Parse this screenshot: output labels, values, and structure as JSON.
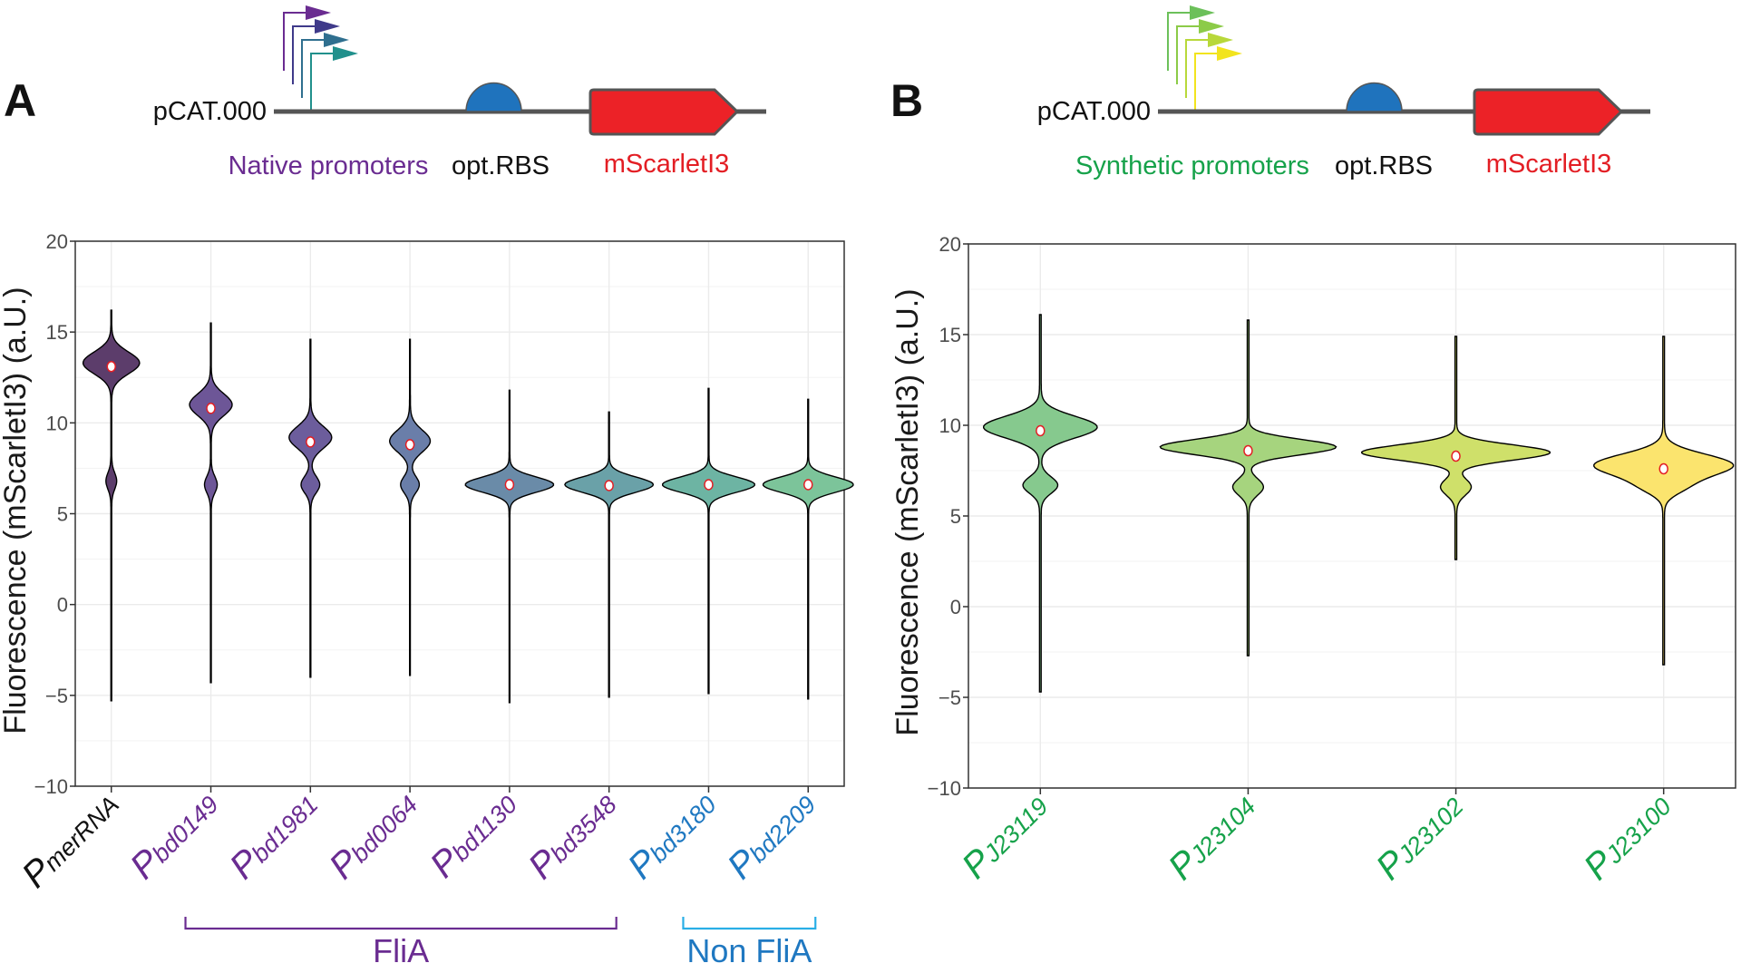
{
  "panels": {
    "A": {
      "letter": "A",
      "construct": "pCAT.000",
      "promoter_label": "Native promoters",
      "rbs_label": "opt.RBS",
      "cds_label": "mScarletI3",
      "promoter_label_color": "#6a2c91",
      "promoter_arrow_colors": [
        "#6a2c91",
        "#3f3a8a",
        "#2f6f8f",
        "#21908c"
      ],
      "groups": [
        {
          "label": "FliA",
          "color": "#6a2c91",
          "bracket_color": "#6a2c91",
          "from": 1,
          "to": 5
        },
        {
          "label": "Non FliA",
          "color": "#1f78c1",
          "bracket_color": "#29aee6",
          "from": 6,
          "to": 7
        }
      ]
    },
    "B": {
      "letter": "B",
      "construct": "pCAT.000",
      "promoter_label": "Synthetic promoters",
      "rbs_label": "opt.RBS",
      "cds_label": "mScarletI3",
      "promoter_label_color": "#16a24a",
      "promoter_arrow_colors": [
        "#6cc05a",
        "#8ccb48",
        "#b8d83a",
        "#f2e41e"
      ]
    }
  },
  "colors": {
    "rbs": "#1f73bd",
    "cds": "#ec2227",
    "backbone": "#555555",
    "label_black": "#111111",
    "cds_label": "#e31e24"
  },
  "chart_data": [
    {
      "type": "violin",
      "panel": "A",
      "ylabel": "Fluorescence (mScarletI3) (a.U.)",
      "ylim": [
        -10,
        20
      ],
      "yticks": [
        -10,
        -5,
        0,
        5,
        10,
        15,
        20
      ],
      "grid": true,
      "categories": [
        {
          "prefix": "P",
          "sub": "merRNA",
          "color": "#111111"
        },
        {
          "prefix": "P",
          "sub": "bd0149",
          "color": "#6a2c91"
        },
        {
          "prefix": "P",
          "sub": "bd1981",
          "color": "#6a2c91"
        },
        {
          "prefix": "P",
          "sub": "bd0064",
          "color": "#6a2c91"
        },
        {
          "prefix": "P",
          "sub": "bd1130",
          "color": "#6a2c91"
        },
        {
          "prefix": "P",
          "sub": "bd3548",
          "color": "#6a2c91"
        },
        {
          "prefix": "P",
          "sub": "bd3180",
          "color": "#1f78c1"
        },
        {
          "prefix": "P",
          "sub": "bd2209",
          "color": "#1f78c1"
        }
      ],
      "violins": [
        {
          "min": -5.3,
          "max": 16.2,
          "mean": 13.1,
          "modes": [
            [
              13.3,
              0.28
            ],
            [
              6.8,
              0.05
            ]
          ],
          "fill": "#5c3d6b"
        },
        {
          "min": -4.3,
          "max": 15.5,
          "mean": 10.8,
          "modes": [
            [
              11.0,
              0.21
            ],
            [
              6.6,
              0.06
            ]
          ],
          "fill": "#6d5697"
        },
        {
          "min": -4.0,
          "max": 14.6,
          "mean": 8.95,
          "modes": [
            [
              9.2,
              0.21
            ],
            [
              6.6,
              0.09
            ]
          ],
          "fill": "#6c5d9c"
        },
        {
          "min": -3.9,
          "max": 14.6,
          "mean": 8.8,
          "modes": [
            [
              9.0,
              0.2
            ],
            [
              6.6,
              0.09
            ]
          ],
          "fill": "#6a7ea9"
        },
        {
          "min": -5.4,
          "max": 11.8,
          "mean": 6.6,
          "modes": [
            [
              6.6,
              0.44
            ]
          ],
          "fill": "#6a8ba8"
        },
        {
          "min": -5.1,
          "max": 10.6,
          "mean": 6.55,
          "modes": [
            [
              6.6,
              0.44
            ]
          ],
          "fill": "#6aa1a8"
        },
        {
          "min": -4.9,
          "max": 11.9,
          "mean": 6.6,
          "modes": [
            [
              6.6,
              0.46
            ]
          ],
          "fill": "#6db4a3"
        },
        {
          "min": -5.2,
          "max": 11.3,
          "mean": 6.6,
          "modes": [
            [
              6.6,
              0.45
            ]
          ],
          "fill": "#7cc49a"
        }
      ]
    },
    {
      "type": "violin",
      "panel": "B",
      "ylabel": "Fluorescence (mScarletI3) (a.U.)",
      "ylim": [
        -10,
        20
      ],
      "yticks": [
        -10,
        -5,
        0,
        5,
        10,
        15,
        20
      ],
      "grid": true,
      "categories": [
        {
          "prefix": "P",
          "sub": "J23119",
          "color": "#16a24a"
        },
        {
          "prefix": "P",
          "sub": "J23104",
          "color": "#16a24a"
        },
        {
          "prefix": "P",
          "sub": "J23102",
          "color": "#16a24a"
        },
        {
          "prefix": "P",
          "sub": "J23100",
          "color": "#16a24a"
        }
      ],
      "violins": [
        {
          "min": -4.7,
          "max": 16.1,
          "mean": 9.7,
          "modes": [
            [
              9.9,
              0.27
            ],
            [
              6.7,
              0.08
            ]
          ],
          "fill": "#86c98e"
        },
        {
          "min": -2.7,
          "max": 15.8,
          "mean": 8.6,
          "modes": [
            [
              8.8,
              0.42
            ],
            [
              6.6,
              0.07
            ]
          ],
          "fill": "#a6d47e"
        },
        {
          "min": 2.6,
          "max": 14.9,
          "mean": 8.3,
          "modes": [
            [
              8.5,
              0.45
            ],
            [
              6.6,
              0.07
            ]
          ],
          "fill": "#cfe06a"
        },
        {
          "min": -3.2,
          "max": 14.9,
          "mean": 7.6,
          "modes": [
            [
              7.8,
              0.33
            ],
            [
              6.6,
              0.08
            ]
          ],
          "fill": "#fbe46e"
        }
      ]
    }
  ]
}
